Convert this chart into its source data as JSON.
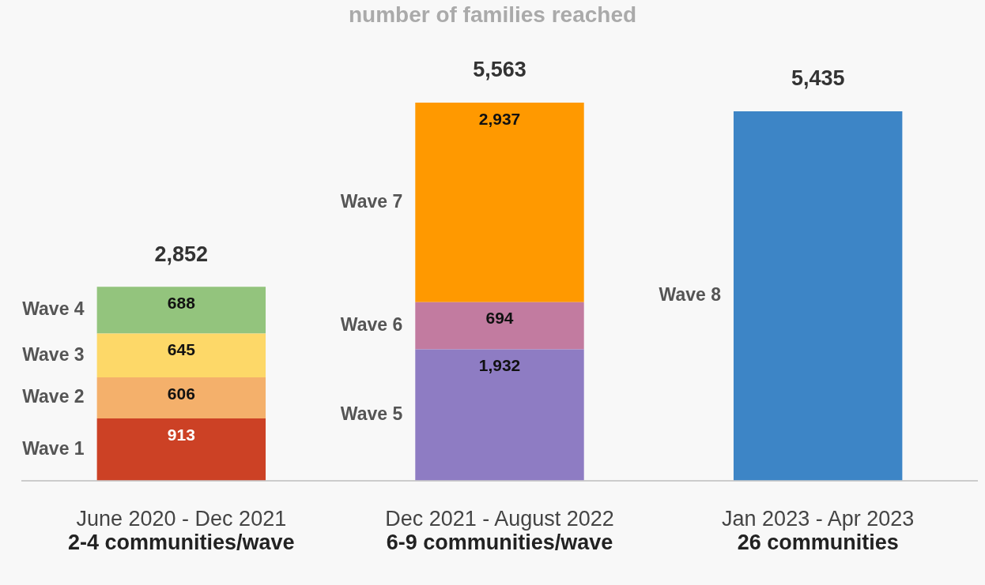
{
  "chart_data": {
    "type": "bar",
    "title": "number of families reached",
    "stacked": true,
    "categories": [
      "June 2020 - Dec 2021",
      "Dec 2021 - August 2022",
      "Jan 2023 - Apr 2023"
    ],
    "series": [
      {
        "name": "Wave 1",
        "color": "#cc4125",
        "values": [
          913,
          null,
          null
        ],
        "value_labels": [
          "913",
          null,
          null
        ]
      },
      {
        "name": "Wave 2",
        "color": "#f4b06b",
        "values": [
          606,
          null,
          null
        ],
        "value_labels": [
          "606",
          null,
          null
        ]
      },
      {
        "name": "Wave 3",
        "color": "#fdd868",
        "values": [
          645,
          null,
          null
        ],
        "value_labels": [
          "645",
          null,
          null
        ]
      },
      {
        "name": "Wave 4",
        "color": "#93c47d",
        "values": [
          688,
          null,
          null
        ],
        "value_labels": [
          "688",
          null,
          null
        ]
      },
      {
        "name": "Wave 5",
        "color": "#8e7cc3",
        "values": [
          null,
          1932,
          null
        ],
        "value_labels": [
          null,
          "1,932",
          null
        ]
      },
      {
        "name": "Wave 6",
        "color": "#c27ba0",
        "values": [
          null,
          694,
          null
        ],
        "value_labels": [
          null,
          "694",
          null
        ]
      },
      {
        "name": "Wave 7",
        "color": "#ff9900",
        "values": [
          null,
          2937,
          null
        ],
        "value_labels": [
          null,
          "2,937",
          null
        ]
      },
      {
        "name": "Wave 8",
        "color": "#3d85c6",
        "values": [
          null,
          null,
          5435
        ]
      }
    ],
    "totals": [
      "2,852",
      "5,563",
      "5,435"
    ],
    "relative": false,
    "annotations": [
      "2-4 communities/wave",
      "6-9 communities/wave",
      "26 communities"
    ]
  }
}
